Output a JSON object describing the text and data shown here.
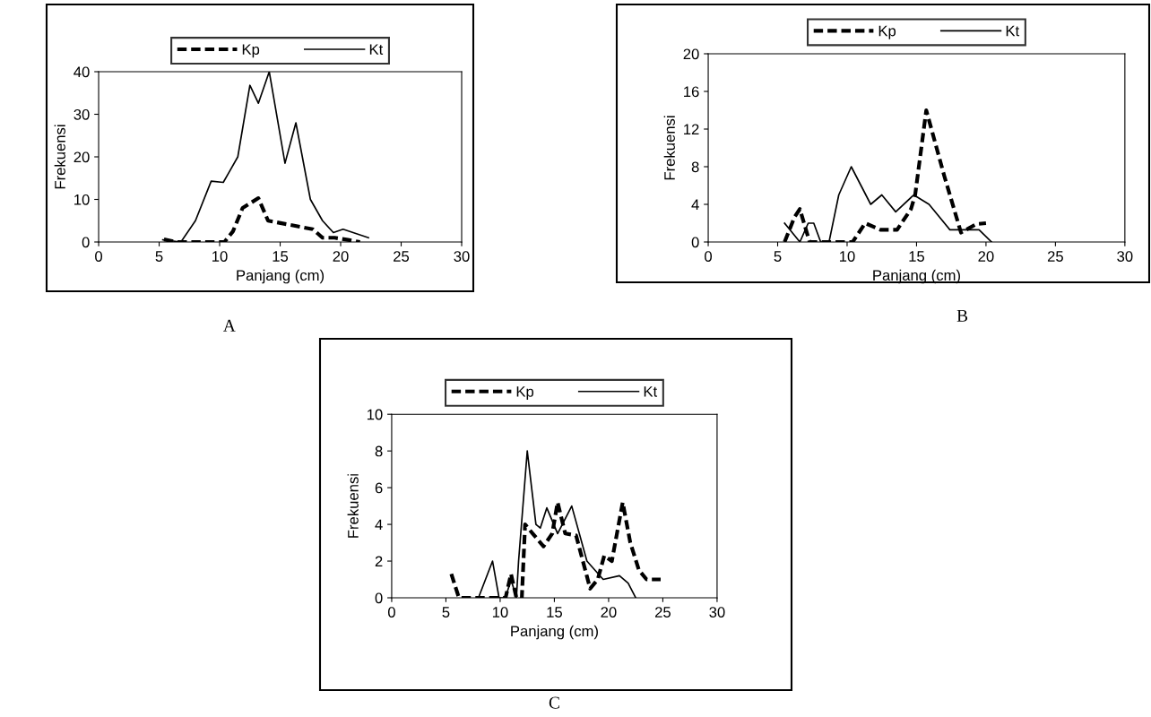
{
  "chart_data": [
    {
      "type": "line",
      "xlabel": "Panjang (cm)",
      "ylabel": "Frekuensi",
      "xlim": [
        0,
        30
      ],
      "xticks": [
        0,
        5,
        10,
        15,
        20,
        25,
        30
      ],
      "ylim": [
        0,
        40
      ],
      "yticks": [
        0,
        10,
        20,
        30,
        40
      ],
      "legend": "top",
      "grid": false,
      "annotations": [
        "A"
      ],
      "series": [
        {
          "name": "Kp",
          "color": "#000000",
          "line_style": "dashed",
          "x": [
            5.4,
            6.4,
            10.4,
            11.1,
            11.9,
            13.2,
            14.0,
            17.7,
            18.5,
            19.5,
            20.6,
            21.6
          ],
          "values": [
            0.6,
            0,
            0,
            2.5,
            8,
            10.3,
            5,
            3,
            1,
            1,
            0.5,
            0
          ]
        },
        {
          "name": "Kt",
          "color": "#000000",
          "line_style": "solid",
          "x": [
            5.3,
            6.8,
            8.0,
            9.3,
            10.3,
            11.5,
            12.5,
            13.2,
            14.1,
            15.4,
            16.3,
            17.5,
            18.5,
            19.4,
            20.2,
            22.3
          ],
          "values": [
            0.5,
            0,
            5,
            14.3,
            14,
            20,
            36.8,
            32.6,
            40,
            18.5,
            28,
            10,
            5,
            2.2,
            3,
            1
          ]
        }
      ]
    },
    {
      "type": "line",
      "xlabel": "Panjang (cm)",
      "ylabel": "Frekuensi",
      "xlim": [
        0,
        30
      ],
      "xticks": [
        0,
        5,
        10,
        15,
        20,
        25,
        30
      ],
      "ylim": [
        0,
        20
      ],
      "yticks": [
        0,
        4,
        8,
        12,
        16,
        20
      ],
      "legend": "top",
      "grid": false,
      "annotations": [
        "B"
      ],
      "series": [
        {
          "name": "Kp",
          "color": "#000000",
          "line_style": "dashed",
          "x": [
            5.5,
            6.2,
            6.6,
            7.3,
            8.3,
            10.4,
            11.3,
            12.4,
            13.6,
            14.6,
            14.9,
            15.7,
            17.0,
            18.2,
            19.3,
            20.0
          ],
          "values": [
            0,
            2.6,
            3.5,
            0,
            0,
            0,
            2,
            1.3,
            1.3,
            3.5,
            5,
            14,
            7,
            1,
            1.9,
            2
          ]
        },
        {
          "name": "Kt",
          "color": "#000000",
          "line_style": "solid",
          "x": [
            5.5,
            6.6,
            7.2,
            7.6,
            8.1,
            8.7,
            9.4,
            10.3,
            11.7,
            12.5,
            13.5,
            14.8,
            15.9,
            17.4,
            19.5,
            20.4
          ],
          "values": [
            2,
            0,
            2,
            2,
            0,
            0,
            5,
            8,
            4,
            5,
            3.2,
            5,
            4,
            1.3,
            1.3,
            0
          ]
        }
      ]
    },
    {
      "type": "line",
      "xlabel": "Panjang (cm)",
      "ylabel": "Frekuensi",
      "xlim": [
        0,
        30
      ],
      "xticks": [
        0,
        5,
        10,
        15,
        20,
        25,
        30
      ],
      "ylim": [
        0,
        10
      ],
      "yticks": [
        0,
        2,
        4,
        6,
        8,
        10
      ],
      "legend": "top",
      "grid": false,
      "annotations": [
        "C"
      ],
      "series": [
        {
          "name": "Kp",
          "color": "#000000",
          "line_style": "dashed",
          "x": [
            5.5,
            6.2,
            7.0,
            10.5,
            11.0,
            11.5,
            12.0,
            12.3,
            13.0,
            14.0,
            14.8,
            15.3,
            16.0,
            17.0,
            18.3,
            19.0,
            19.6,
            20.3,
            21.3,
            22.0,
            22.8,
            23.5,
            24.8
          ],
          "values": [
            1.3,
            0,
            0,
            0,
            1.3,
            0,
            0,
            4,
            3.5,
            2.8,
            3.5,
            5.2,
            3.5,
            3.4,
            0.5,
            1,
            2.3,
            2,
            5.2,
            3,
            1.5,
            1,
            1
          ]
        },
        {
          "name": "Kt",
          "color": "#000000",
          "line_style": "solid",
          "x": [
            8.0,
            9.3,
            9.9,
            10.5,
            11.0,
            11.5,
            11.7,
            12.5,
            13.3,
            13.7,
            14.3,
            15.3,
            16.6,
            18.0,
            19.5,
            21.0,
            21.8,
            22.5
          ],
          "values": [
            0,
            2,
            0,
            0,
            1,
            0,
            2,
            8,
            4,
            3.8,
            4.9,
            3.5,
            5,
            2,
            1,
            1.2,
            0.8,
            0
          ]
        }
      ]
    }
  ]
}
